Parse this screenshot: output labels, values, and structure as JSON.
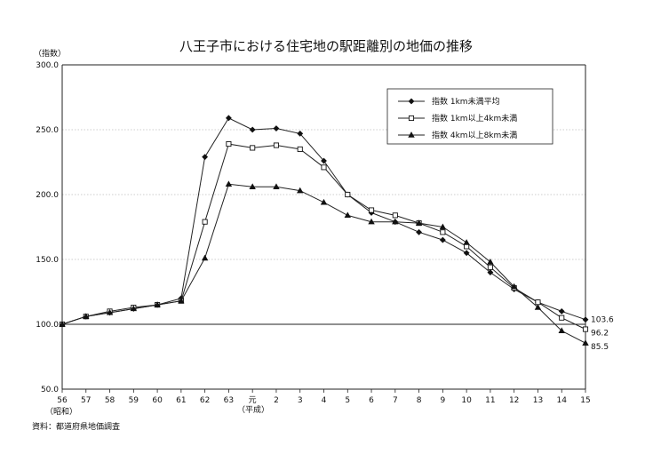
{
  "chart_data": {
    "type": "line",
    "title": "八王子市における住宅地の駅距離別の地価の推移",
    "ylabel": "（指数）",
    "x_era_label": "（昭和）",
    "x_era_label_2": "（平成）",
    "source": "資料：都道府県地価調査",
    "categories": [
      "56",
      "57",
      "58",
      "59",
      "60",
      "61",
      "62",
      "63",
      "元",
      "2",
      "3",
      "4",
      "5",
      "6",
      "7",
      "8",
      "9",
      "10",
      "11",
      "12",
      "13",
      "14",
      "15"
    ],
    "ylim": [
      50,
      300
    ],
    "yticks": [
      "50.0",
      "100.0",
      "150.0",
      "200.0",
      "250.0",
      "300.0"
    ],
    "baseline": 100,
    "grid": true,
    "legend_position": "top-right",
    "series": [
      {
        "name": "指数 1km未満平均",
        "marker": "diamond",
        "values": [
          100,
          106,
          109,
          112,
          115,
          120,
          229,
          259,
          250,
          251,
          247,
          226,
          200,
          186,
          179,
          171,
          165,
          155,
          140,
          127,
          117,
          110,
          103.6
        ],
        "end_label": "103.6"
      },
      {
        "name": "指数 1km以上4km未満",
        "marker": "square",
        "values": [
          100,
          106,
          110,
          113,
          115,
          118,
          179,
          239,
          236,
          238,
          235,
          221,
          200,
          188,
          184,
          178,
          171,
          160,
          144,
          128,
          117,
          105,
          96.2
        ],
        "end_label": "96.2"
      },
      {
        "name": "指数 4km以上8km未満",
        "marker": "triangle",
        "values": [
          100,
          106,
          109,
          112,
          115,
          118,
          151,
          208,
          206,
          206,
          203,
          194,
          184,
          179,
          179,
          178,
          175,
          163,
          148,
          129,
          113,
          95,
          85.5
        ],
        "end_label": "85.5"
      }
    ]
  }
}
